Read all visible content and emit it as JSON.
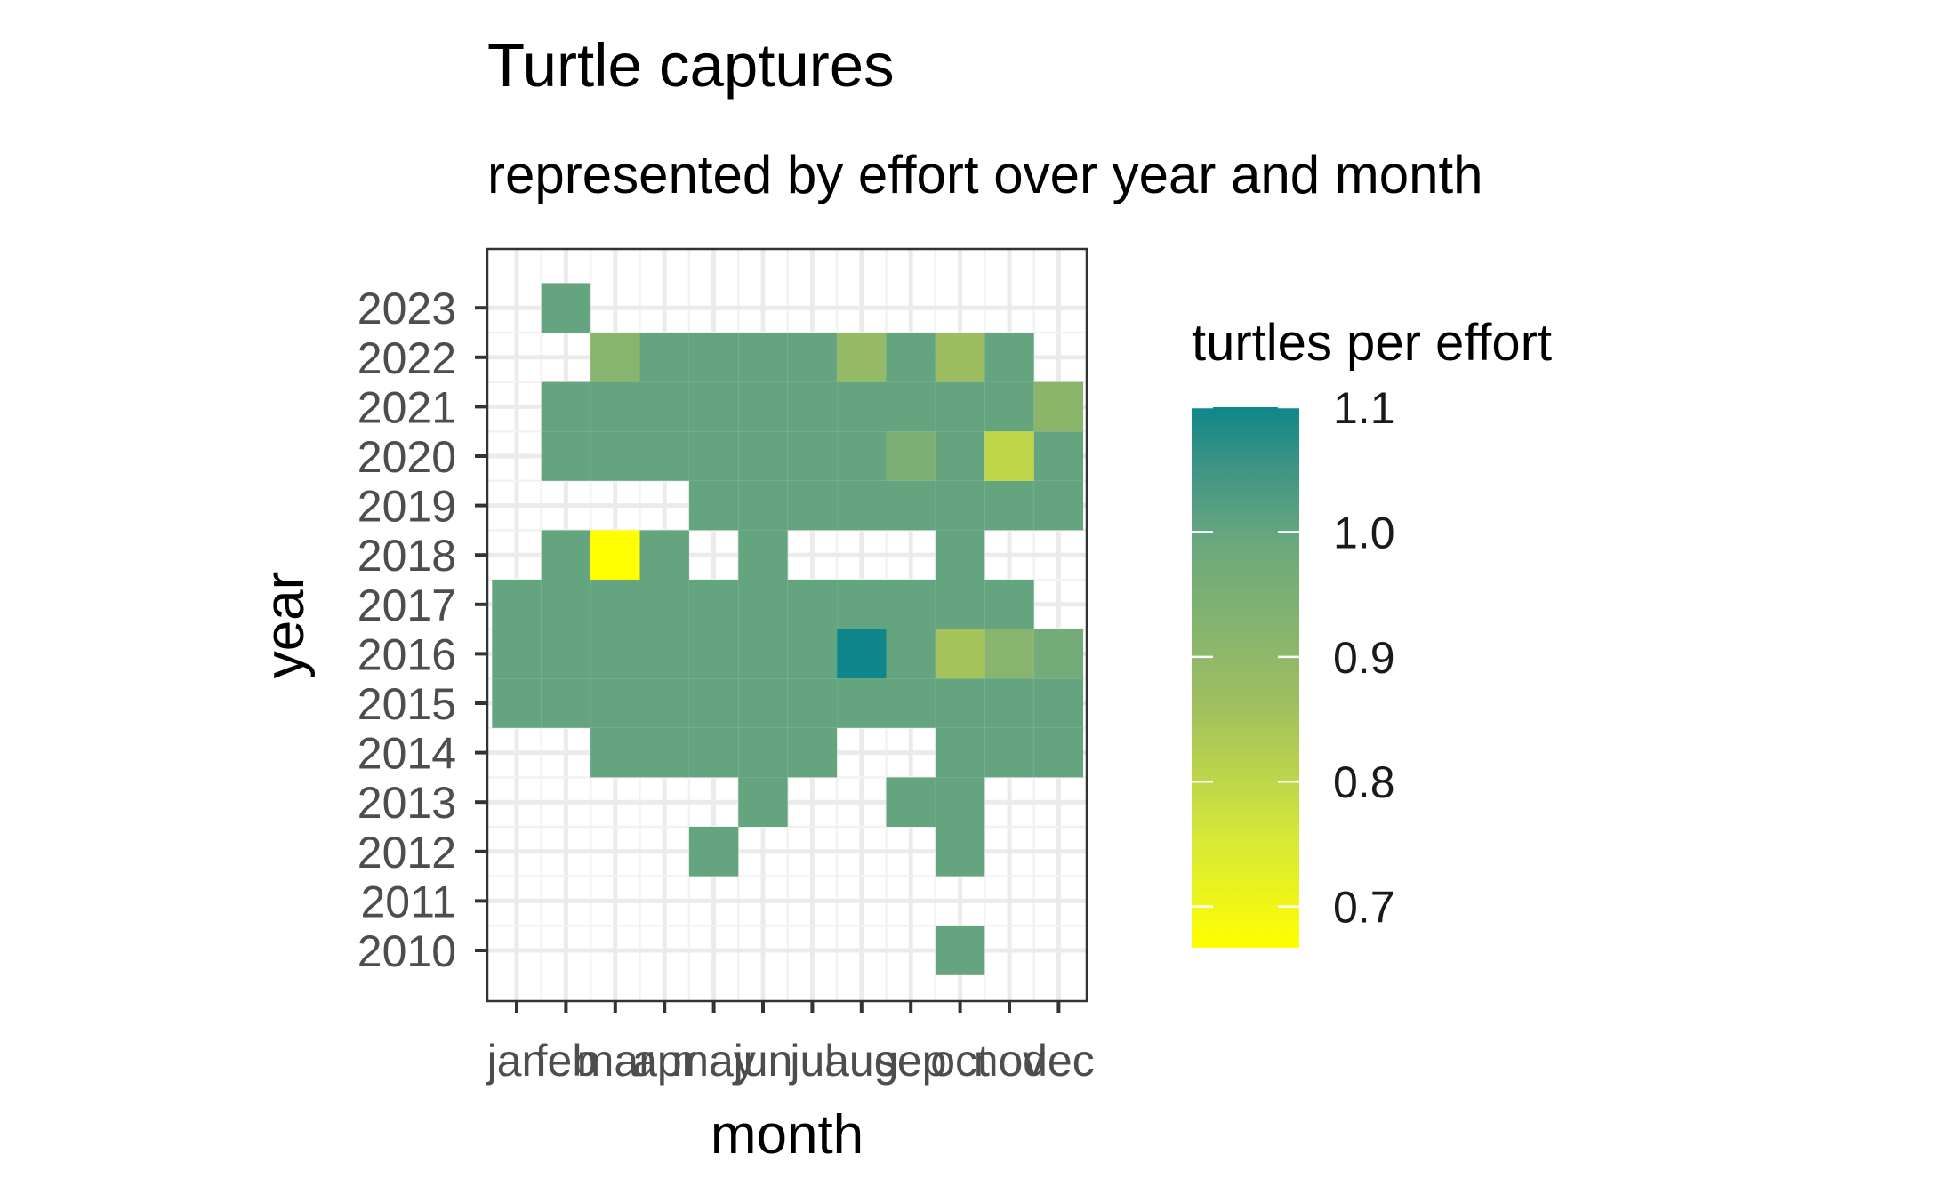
{
  "chart_data": {
    "type": "heatmap",
    "title": "Turtle captures",
    "subtitle": "represented by effort over year and month",
    "xlabel": "month",
    "ylabel": "year",
    "x_categories": [
      "jan",
      "feb",
      "mar",
      "apr",
      "may",
      "jun",
      "jul",
      "aug",
      "sep",
      "oct",
      "nov",
      "dec"
    ],
    "y_categories": [
      "2010",
      "2011",
      "2012",
      "2013",
      "2014",
      "2015",
      "2016",
      "2017",
      "2018",
      "2019",
      "2020",
      "2021",
      "2022",
      "2023"
    ],
    "legend": {
      "title": "turtles per effort",
      "breaks": [
        "1.1",
        "1.0",
        "0.9",
        "0.8",
        "0.7"
      ],
      "break_values": [
        1.1,
        1.0,
        0.9,
        0.8,
        0.7
      ],
      "range": [
        0.667,
        1.1
      ],
      "placement": "right",
      "colors": [
        "#ffff00",
        "#d7e838",
        "#9fbf5f",
        "#6aa87e",
        "#3a9286",
        "#0f878a"
      ]
    },
    "grid": true,
    "cells": [
      {
        "x": "oct",
        "y": "2010",
        "value": 1.0
      },
      {
        "x": "may",
        "y": "2012",
        "value": 1.0
      },
      {
        "x": "oct",
        "y": "2012",
        "value": 1.0
      },
      {
        "x": "jun",
        "y": "2013",
        "value": 1.0
      },
      {
        "x": "sep",
        "y": "2013",
        "value": 1.0
      },
      {
        "x": "oct",
        "y": "2013",
        "value": 1.0
      },
      {
        "x": "mar",
        "y": "2014",
        "value": 1.0
      },
      {
        "x": "apr",
        "y": "2014",
        "value": 1.0
      },
      {
        "x": "may",
        "y": "2014",
        "value": 1.0
      },
      {
        "x": "jun",
        "y": "2014",
        "value": 1.0
      },
      {
        "x": "jul",
        "y": "2014",
        "value": 1.0
      },
      {
        "x": "oct",
        "y": "2014",
        "value": 1.0
      },
      {
        "x": "nov",
        "y": "2014",
        "value": 1.0
      },
      {
        "x": "dec",
        "y": "2014",
        "value": 1.0
      },
      {
        "x": "jan",
        "y": "2015",
        "value": 1.0
      },
      {
        "x": "feb",
        "y": "2015",
        "value": 1.0
      },
      {
        "x": "mar",
        "y": "2015",
        "value": 1.0
      },
      {
        "x": "apr",
        "y": "2015",
        "value": 1.0
      },
      {
        "x": "may",
        "y": "2015",
        "value": 1.0
      },
      {
        "x": "jun",
        "y": "2015",
        "value": 1.0
      },
      {
        "x": "jul",
        "y": "2015",
        "value": 1.0
      },
      {
        "x": "aug",
        "y": "2015",
        "value": 1.0
      },
      {
        "x": "sep",
        "y": "2015",
        "value": 1.0
      },
      {
        "x": "oct",
        "y": "2015",
        "value": 1.0
      },
      {
        "x": "nov",
        "y": "2015",
        "value": 1.0
      },
      {
        "x": "dec",
        "y": "2015",
        "value": 1.0
      },
      {
        "x": "jan",
        "y": "2016",
        "value": 1.0
      },
      {
        "x": "feb",
        "y": "2016",
        "value": 1.0
      },
      {
        "x": "mar",
        "y": "2016",
        "value": 1.0
      },
      {
        "x": "apr",
        "y": "2016",
        "value": 1.0
      },
      {
        "x": "may",
        "y": "2016",
        "value": 1.0
      },
      {
        "x": "jun",
        "y": "2016",
        "value": 1.0
      },
      {
        "x": "jul",
        "y": "2016",
        "value": 1.0
      },
      {
        "x": "aug",
        "y": "2016",
        "value": 1.1
      },
      {
        "x": "sep",
        "y": "2016",
        "value": 1.0
      },
      {
        "x": "oct",
        "y": "2016",
        "value": 0.85
      },
      {
        "x": "nov",
        "y": "2016",
        "value": 0.92
      },
      {
        "x": "dec",
        "y": "2016",
        "value": 0.97
      },
      {
        "x": "jan",
        "y": "2017",
        "value": 1.0
      },
      {
        "x": "feb",
        "y": "2017",
        "value": 1.0
      },
      {
        "x": "mar",
        "y": "2017",
        "value": 1.0
      },
      {
        "x": "apr",
        "y": "2017",
        "value": 1.0
      },
      {
        "x": "may",
        "y": "2017",
        "value": 1.0
      },
      {
        "x": "jun",
        "y": "2017",
        "value": 1.0
      },
      {
        "x": "jul",
        "y": "2017",
        "value": 1.0
      },
      {
        "x": "aug",
        "y": "2017",
        "value": 1.0
      },
      {
        "x": "sep",
        "y": "2017",
        "value": 1.0
      },
      {
        "x": "oct",
        "y": "2017",
        "value": 1.0
      },
      {
        "x": "nov",
        "y": "2017",
        "value": 1.0
      },
      {
        "x": "feb",
        "y": "2018",
        "value": 1.0
      },
      {
        "x": "mar",
        "y": "2018",
        "value": 0.667
      },
      {
        "x": "apr",
        "y": "2018",
        "value": 1.0
      },
      {
        "x": "jun",
        "y": "2018",
        "value": 1.0
      },
      {
        "x": "oct",
        "y": "2018",
        "value": 1.0
      },
      {
        "x": "may",
        "y": "2019",
        "value": 1.0
      },
      {
        "x": "jun",
        "y": "2019",
        "value": 1.0
      },
      {
        "x": "jul",
        "y": "2019",
        "value": 1.0
      },
      {
        "x": "aug",
        "y": "2019",
        "value": 1.0
      },
      {
        "x": "sep",
        "y": "2019",
        "value": 1.0
      },
      {
        "x": "oct",
        "y": "2019",
        "value": 1.0
      },
      {
        "x": "nov",
        "y": "2019",
        "value": 1.0
      },
      {
        "x": "dec",
        "y": "2019",
        "value": 1.0
      },
      {
        "x": "feb",
        "y": "2020",
        "value": 1.0
      },
      {
        "x": "mar",
        "y": "2020",
        "value": 1.0
      },
      {
        "x": "apr",
        "y": "2020",
        "value": 1.0
      },
      {
        "x": "may",
        "y": "2020",
        "value": 1.0
      },
      {
        "x": "jun",
        "y": "2020",
        "value": 1.0
      },
      {
        "x": "jul",
        "y": "2020",
        "value": 1.0
      },
      {
        "x": "aug",
        "y": "2020",
        "value": 1.0
      },
      {
        "x": "sep",
        "y": "2020",
        "value": 0.95
      },
      {
        "x": "oct",
        "y": "2020",
        "value": 1.0
      },
      {
        "x": "nov",
        "y": "2020",
        "value": 0.8
      },
      {
        "x": "dec",
        "y": "2020",
        "value": 1.0
      },
      {
        "x": "feb",
        "y": "2021",
        "value": 1.0
      },
      {
        "x": "mar",
        "y": "2021",
        "value": 1.0
      },
      {
        "x": "apr",
        "y": "2021",
        "value": 1.0
      },
      {
        "x": "may",
        "y": "2021",
        "value": 1.0
      },
      {
        "x": "jun",
        "y": "2021",
        "value": 1.0
      },
      {
        "x": "jul",
        "y": "2021",
        "value": 1.0
      },
      {
        "x": "aug",
        "y": "2021",
        "value": 1.0
      },
      {
        "x": "sep",
        "y": "2021",
        "value": 1.0
      },
      {
        "x": "oct",
        "y": "2021",
        "value": 1.0
      },
      {
        "x": "nov",
        "y": "2021",
        "value": 1.0
      },
      {
        "x": "dec",
        "y": "2021",
        "value": 0.91
      },
      {
        "x": "mar",
        "y": "2022",
        "value": 0.92
      },
      {
        "x": "apr",
        "y": "2022",
        "value": 1.0
      },
      {
        "x": "may",
        "y": "2022",
        "value": 1.0
      },
      {
        "x": "jun",
        "y": "2022",
        "value": 1.0
      },
      {
        "x": "jul",
        "y": "2022",
        "value": 1.0
      },
      {
        "x": "aug",
        "y": "2022",
        "value": 0.89
      },
      {
        "x": "sep",
        "y": "2022",
        "value": 1.0
      },
      {
        "x": "oct",
        "y": "2022",
        "value": 0.87
      },
      {
        "x": "nov",
        "y": "2022",
        "value": 1.0
      },
      {
        "x": "feb",
        "y": "2023",
        "value": 1.0
      }
    ]
  }
}
